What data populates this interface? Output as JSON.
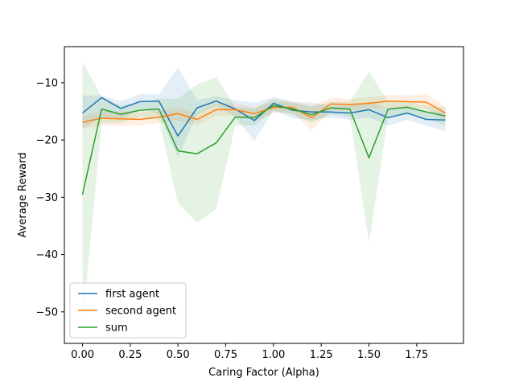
{
  "chart_data": {
    "type": "line",
    "title": "",
    "xlabel": "Caring Factor (Alpha)",
    "ylabel": "Average Reward",
    "xlim": [
      -0.095,
      1.995
    ],
    "ylim": [
      -55.5,
      -3.7
    ],
    "x_ticks": [
      0.0,
      0.25,
      0.5,
      0.75,
      1.0,
      1.25,
      1.5,
      1.75
    ],
    "x_tick_labels": [
      "0.00",
      "0.25",
      "0.50",
      "0.75",
      "1.00",
      "1.25",
      "1.50",
      "1.75"
    ],
    "y_ticks": [
      -50,
      -40,
      -30,
      -20,
      -10
    ],
    "y_tick_labels": [
      "−50",
      "−40",
      "−30",
      "−20",
      "−10"
    ],
    "grid": false,
    "legend_position": "lower-left",
    "x": [
      0.0,
      0.1,
      0.2,
      0.3,
      0.4,
      0.5,
      0.6,
      0.7,
      0.8,
      0.9,
      1.0,
      1.1,
      1.2,
      1.3,
      1.4,
      1.5,
      1.6,
      1.7,
      1.8,
      1.9
    ],
    "series": [
      {
        "name": "first agent",
        "color": "#1f77b4",
        "values": [
          -15.3,
          -12.6,
          -14.5,
          -13.3,
          -13.2,
          -19.3,
          -14.4,
          -13.2,
          -14.6,
          -16.6,
          -13.6,
          -14.8,
          -15.1,
          -15.1,
          -15.3,
          -14.7,
          -16.1,
          -15.3,
          -16.4,
          -16.5
        ],
        "lower": [
          -18.0,
          -16.0,
          -16.5,
          -14.5,
          -15.5,
          -23.0,
          -15.5,
          -14.0,
          -16.0,
          -20.2,
          -14.8,
          -16.2,
          -16.5,
          -16.0,
          -16.5,
          -16.0,
          -17.5,
          -16.5,
          -17.5,
          -18.5
        ],
        "upper": [
          -12.2,
          -12.2,
          -13.2,
          -12.0,
          -12.0,
          -7.3,
          -13.0,
          -12.3,
          -13.0,
          -13.5,
          -12.5,
          -13.3,
          -13.5,
          -14.0,
          -14.0,
          -13.3,
          -14.5,
          -14.0,
          -15.0,
          -15.0
        ]
      },
      {
        "name": "second agent",
        "color": "#ff7f0e",
        "values": [
          -16.9,
          -16.2,
          -16.3,
          -16.4,
          -16.0,
          -15.4,
          -16.4,
          -14.7,
          -14.7,
          -15.4,
          -14.3,
          -14.3,
          -16.1,
          -13.7,
          -13.8,
          -13.6,
          -13.2,
          -13.3,
          -13.4,
          -15.3
        ],
        "lower": [
          -18.0,
          -17.5,
          -17.5,
          -17.5,
          -17.0,
          -16.5,
          -17.5,
          -15.8,
          -15.8,
          -16.5,
          -15.3,
          -15.3,
          -18.3,
          -14.8,
          -14.8,
          -14.7,
          -14.3,
          -14.4,
          -14.5,
          -16.5
        ],
        "upper": [
          -15.8,
          -15.0,
          -15.0,
          -15.2,
          -14.9,
          -14.3,
          -15.3,
          -13.6,
          -13.6,
          -14.3,
          -13.3,
          -13.3,
          -14.0,
          -12.6,
          -12.8,
          -12.5,
          -12.1,
          -12.2,
          -12.0,
          -14.1
        ]
      },
      {
        "name": "sum",
        "color": "#2ca02c",
        "values": [
          -29.5,
          -14.6,
          -15.5,
          -14.8,
          -14.6,
          -21.9,
          -22.4,
          -20.5,
          -16.0,
          -16.1,
          -14.0,
          -14.6,
          -15.6,
          -14.4,
          -14.6,
          -23.1,
          -14.6,
          -14.3,
          -15.1,
          -15.8
        ],
        "lower": [
          -52.5,
          -17.0,
          -17.0,
          -16.0,
          -16.5,
          -31.0,
          -34.5,
          -32.0,
          -17.5,
          -17.5,
          -15.0,
          -15.5,
          -17.0,
          -15.5,
          -16.0,
          -38.0,
          -16.0,
          -15.5,
          -16.2,
          -17.5
        ],
        "upper": [
          -6.3,
          -12.5,
          -14.0,
          -13.5,
          -12.8,
          -12.8,
          -10.3,
          -9.0,
          -14.3,
          -14.5,
          -12.8,
          -13.5,
          -14.2,
          -13.3,
          -13.3,
          -8.0,
          -13.3,
          -13.3,
          -14.0,
          -14.3
        ]
      }
    ]
  }
}
